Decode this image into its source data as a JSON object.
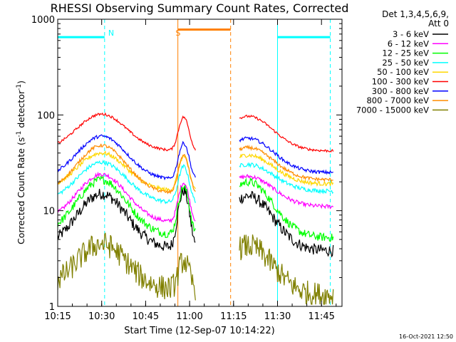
{
  "chart_data": {
    "type": "line",
    "title": "RHESSI Observing Summary Count Rates, Corrected",
    "xlabel": "Start Time (12-Sep-07 10:14:22)",
    "ylabel_main": "Corrected Count Rate (s",
    "ylabel_sup1": "-1",
    "ylabel_mid": " detector",
    "ylabel_sup2": "-1",
    "ylabel_end": ")",
    "y_scale": "log",
    "ylim": [
      1,
      1000
    ],
    "x_range_minutes": [
      "10:15",
      "11:52"
    ],
    "x_ticks": [
      "10:15",
      "10:30",
      "10:45",
      "11:00",
      "11:15",
      "11:30",
      "11:45"
    ],
    "y_ticks": [
      "1",
      "10",
      "100",
      "1000"
    ],
    "legend_header": [
      "Det 1,3,4,5,6,9,",
      "Att 0"
    ],
    "timestamp": "16-Oct-2021 12:50",
    "legend": [
      {
        "label": "3 - 6 keV",
        "color": "#000000"
      },
      {
        "label": "6 - 12 keV",
        "color": "#ff00ff"
      },
      {
        "label": "12 - 25 keV",
        "color": "#00ff00"
      },
      {
        "label": "25 - 50 keV",
        "color": "#00ffff"
      },
      {
        "label": "50 - 100 keV",
        "color": "#ffd700"
      },
      {
        "label": "100 - 300 keV",
        "color": "#ff0000"
      },
      {
        "label": "300 - 800 keV",
        "color": "#0000ff"
      },
      {
        "label": "800 - 7000 keV",
        "color": "#ff8c00"
      },
      {
        "label": "7000 - 15000 keV",
        "color": "#808000"
      }
    ],
    "annotations": [
      {
        "label": "N",
        "color": "#00ffff",
        "time": "10:31"
      },
      {
        "label": "S",
        "color": "#ff8000",
        "time": "10:54"
      }
    ],
    "night_bars": [
      {
        "start": "10:15",
        "end": "10:31",
        "color": "#00ffff",
        "value": 650
      },
      {
        "start": "11:30",
        "end": "11:48",
        "color": "#00ffff",
        "value": 650
      }
    ],
    "saa_bar": {
      "start": "10:56",
      "end": "11:14",
      "color": "#ff8000",
      "value": 780
    },
    "cyan_dashed": [
      "10:31",
      "11:48"
    ],
    "cyan_solid": [
      "10:15",
      "11:30"
    ],
    "orange_solid": [
      "10:56"
    ],
    "orange_dashed": [
      "11:14"
    ],
    "gap": [
      "11:02",
      "11:17"
    ],
    "series": [
      {
        "name": "3 - 6 keV",
        "color": "#000000",
        "base": 4.0,
        "peak": 15.0,
        "end": 3.8,
        "bump": 3,
        "noise": 0.14
      },
      {
        "name": "6 - 12 keV",
        "color": "#ff00ff",
        "base": 7.5,
        "peak": 24.0,
        "end": 11.0,
        "bump": 1.6,
        "noise": 0.05
      },
      {
        "name": "12 - 25 keV",
        "color": "#00ff00",
        "base": 5.5,
        "peak": 21.0,
        "end": 5.2,
        "bump": 2.2,
        "noise": 0.1
      },
      {
        "name": "25 - 50 keV",
        "color": "#00ffff",
        "base": 12.0,
        "peak": 32.0,
        "end": 16.0,
        "bump": 1.4,
        "noise": 0.05
      },
      {
        "name": "50 - 100 keV",
        "color": "#ffd700",
        "base": 16.0,
        "peak": 40.0,
        "end": 19.0,
        "bump": 1.3,
        "noise": 0.05
      },
      {
        "name": "100 - 300 keV",
        "color": "#ff0000",
        "base": 42.0,
        "peak": 102.0,
        "end": 42.0,
        "bump": 1.25,
        "noise": 0.03
      },
      {
        "name": "300 - 800 keV",
        "color": "#0000ff",
        "base": 21.0,
        "peak": 60.0,
        "end": 25.0,
        "bump": 1.4,
        "noise": 0.04
      },
      {
        "name": "800 - 7000 keV",
        "color": "#ff8c00",
        "base": 15.0,
        "peak": 48.0,
        "end": 21.0,
        "bump": 1.5,
        "noise": 0.04
      },
      {
        "name": "7000 - 15000 keV",
        "color": "#808000",
        "base": 1.5,
        "peak": 4.5,
        "end": 1.3,
        "bump": 1.0,
        "noise": 0.3
      }
    ]
  }
}
